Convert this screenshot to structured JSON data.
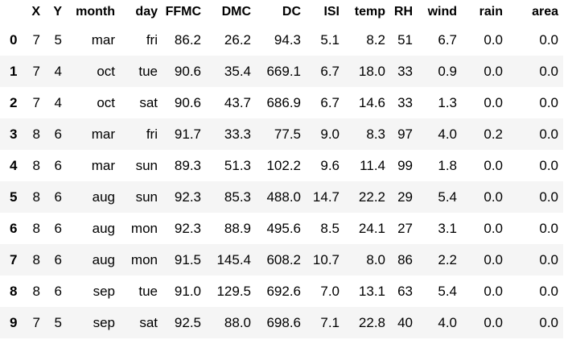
{
  "dataframe": {
    "index_header": "",
    "columns": [
      "X",
      "Y",
      "month",
      "day",
      "FFMC",
      "DMC",
      "DC",
      "ISI",
      "temp",
      "RH",
      "wind",
      "rain",
      "area"
    ],
    "rows": [
      {
        "index": "0",
        "cells": [
          "7",
          "5",
          "mar",
          "fri",
          "86.2",
          "26.2",
          "94.3",
          "5.1",
          "8.2",
          "51",
          "6.7",
          "0.0",
          "0.0"
        ]
      },
      {
        "index": "1",
        "cells": [
          "7",
          "4",
          "oct",
          "tue",
          "90.6",
          "35.4",
          "669.1",
          "6.7",
          "18.0",
          "33",
          "0.9",
          "0.0",
          "0.0"
        ]
      },
      {
        "index": "2",
        "cells": [
          "7",
          "4",
          "oct",
          "sat",
          "90.6",
          "43.7",
          "686.9",
          "6.7",
          "14.6",
          "33",
          "1.3",
          "0.0",
          "0.0"
        ]
      },
      {
        "index": "3",
        "cells": [
          "8",
          "6",
          "mar",
          "fri",
          "91.7",
          "33.3",
          "77.5",
          "9.0",
          "8.3",
          "97",
          "4.0",
          "0.2",
          "0.0"
        ]
      },
      {
        "index": "4",
        "cells": [
          "8",
          "6",
          "mar",
          "sun",
          "89.3",
          "51.3",
          "102.2",
          "9.6",
          "11.4",
          "99",
          "1.8",
          "0.0",
          "0.0"
        ]
      },
      {
        "index": "5",
        "cells": [
          "8",
          "6",
          "aug",
          "sun",
          "92.3",
          "85.3",
          "488.0",
          "14.7",
          "22.2",
          "29",
          "5.4",
          "0.0",
          "0.0"
        ]
      },
      {
        "index": "6",
        "cells": [
          "8",
          "6",
          "aug",
          "mon",
          "92.3",
          "88.9",
          "495.6",
          "8.5",
          "24.1",
          "27",
          "3.1",
          "0.0",
          "0.0"
        ]
      },
      {
        "index": "7",
        "cells": [
          "8",
          "6",
          "aug",
          "mon",
          "91.5",
          "145.4",
          "608.2",
          "10.7",
          "8.0",
          "86",
          "2.2",
          "0.0",
          "0.0"
        ]
      },
      {
        "index": "8",
        "cells": [
          "8",
          "6",
          "sep",
          "tue",
          "91.0",
          "129.5",
          "692.6",
          "7.0",
          "13.1",
          "63",
          "5.4",
          "0.0",
          "0.0"
        ]
      },
      {
        "index": "9",
        "cells": [
          "7",
          "5",
          "sep",
          "sat",
          "92.5",
          "88.0",
          "698.6",
          "7.1",
          "22.8",
          "40",
          "4.0",
          "0.0",
          "0.0"
        ]
      }
    ]
  },
  "colors": {
    "background": "#ffffff",
    "stripe": "#f5f5f5",
    "text": "#000000"
  }
}
